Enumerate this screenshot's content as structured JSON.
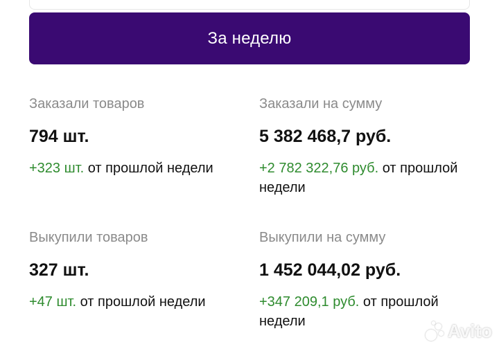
{
  "header": {
    "period_button_label": "За неделю"
  },
  "stats": {
    "ordered_items": {
      "label": "Заказали товаров",
      "value": "794 шт.",
      "delta": "+323 шт.",
      "delta_suffix": " от прошлой недели"
    },
    "ordered_sum": {
      "label": "Заказали на сумму",
      "value": "5 382 468,7 руб.",
      "delta": "+2 782 322,76 руб.",
      "delta_suffix": " от прошлой недели"
    },
    "bought_items": {
      "label": "Выкупили товаров",
      "value": "327 шт.",
      "delta": "+47 шт.",
      "delta_suffix": " от прошлой недели"
    },
    "bought_sum": {
      "label": "Выкупили на сумму",
      "value": "1 452 044,02 руб.",
      "delta": "+347 209,1 руб.",
      "delta_suffix": " от прошлой недели"
    }
  },
  "watermark": {
    "text": "Avito"
  },
  "colors": {
    "button_bg": "#3a0a72",
    "positive_delta": "#2e8b2e",
    "label_gray": "#8a8a8a"
  }
}
